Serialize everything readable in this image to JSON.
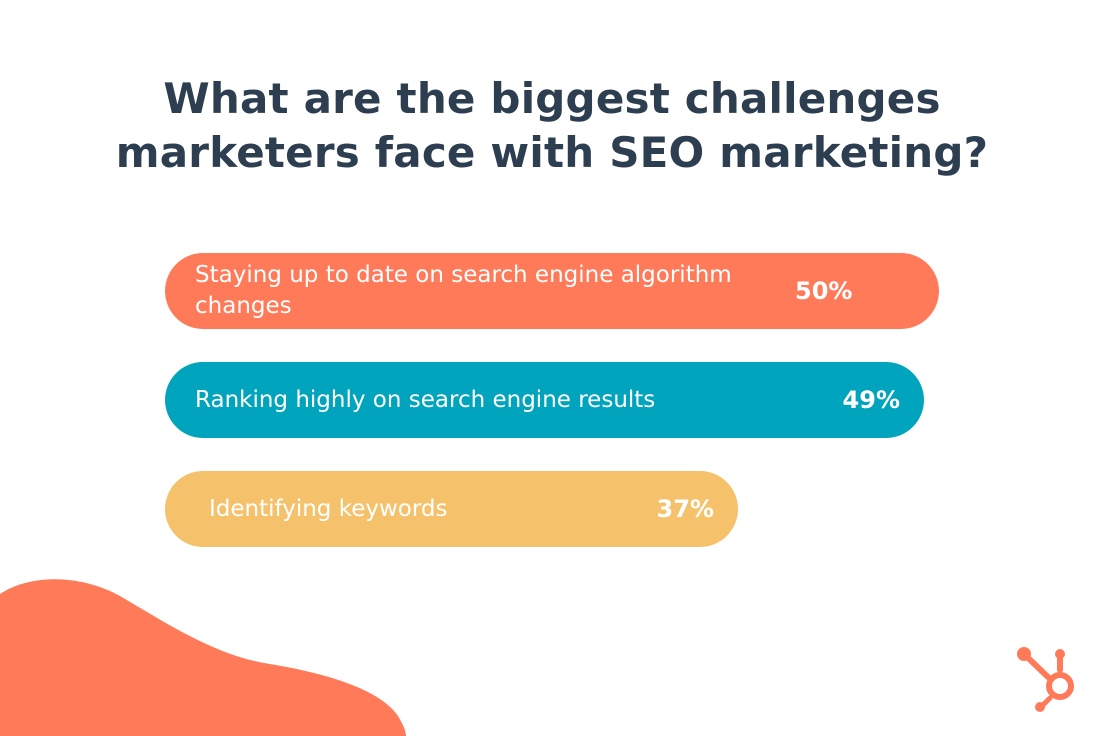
{
  "title": {
    "line1": "What are the biggest challenges",
    "line2": "marketers face with SEO marketing?"
  },
  "colors": {
    "title": "#2d3e50",
    "accent_blob": "#ff7a59",
    "logo": "#ff7a59"
  },
  "icons": {
    "logo": "hubspot-sprocket-icon"
  },
  "chart_data": {
    "type": "bar",
    "orientation": "horizontal",
    "categories": [
      "Staying up to date on search engine algorithm changes",
      "Ranking highly on search engine results",
      "Identifying keywords"
    ],
    "values": [
      50,
      49,
      37
    ],
    "value_labels": [
      "50%",
      "49%",
      "37%"
    ],
    "colors": [
      "#ff7a59",
      "#00a4bd",
      "#f5c26b"
    ],
    "title": "What are the biggest challenges marketers face with SEO marketing?",
    "xlabel": "",
    "ylabel": "",
    "grid": false,
    "legend": "none"
  }
}
